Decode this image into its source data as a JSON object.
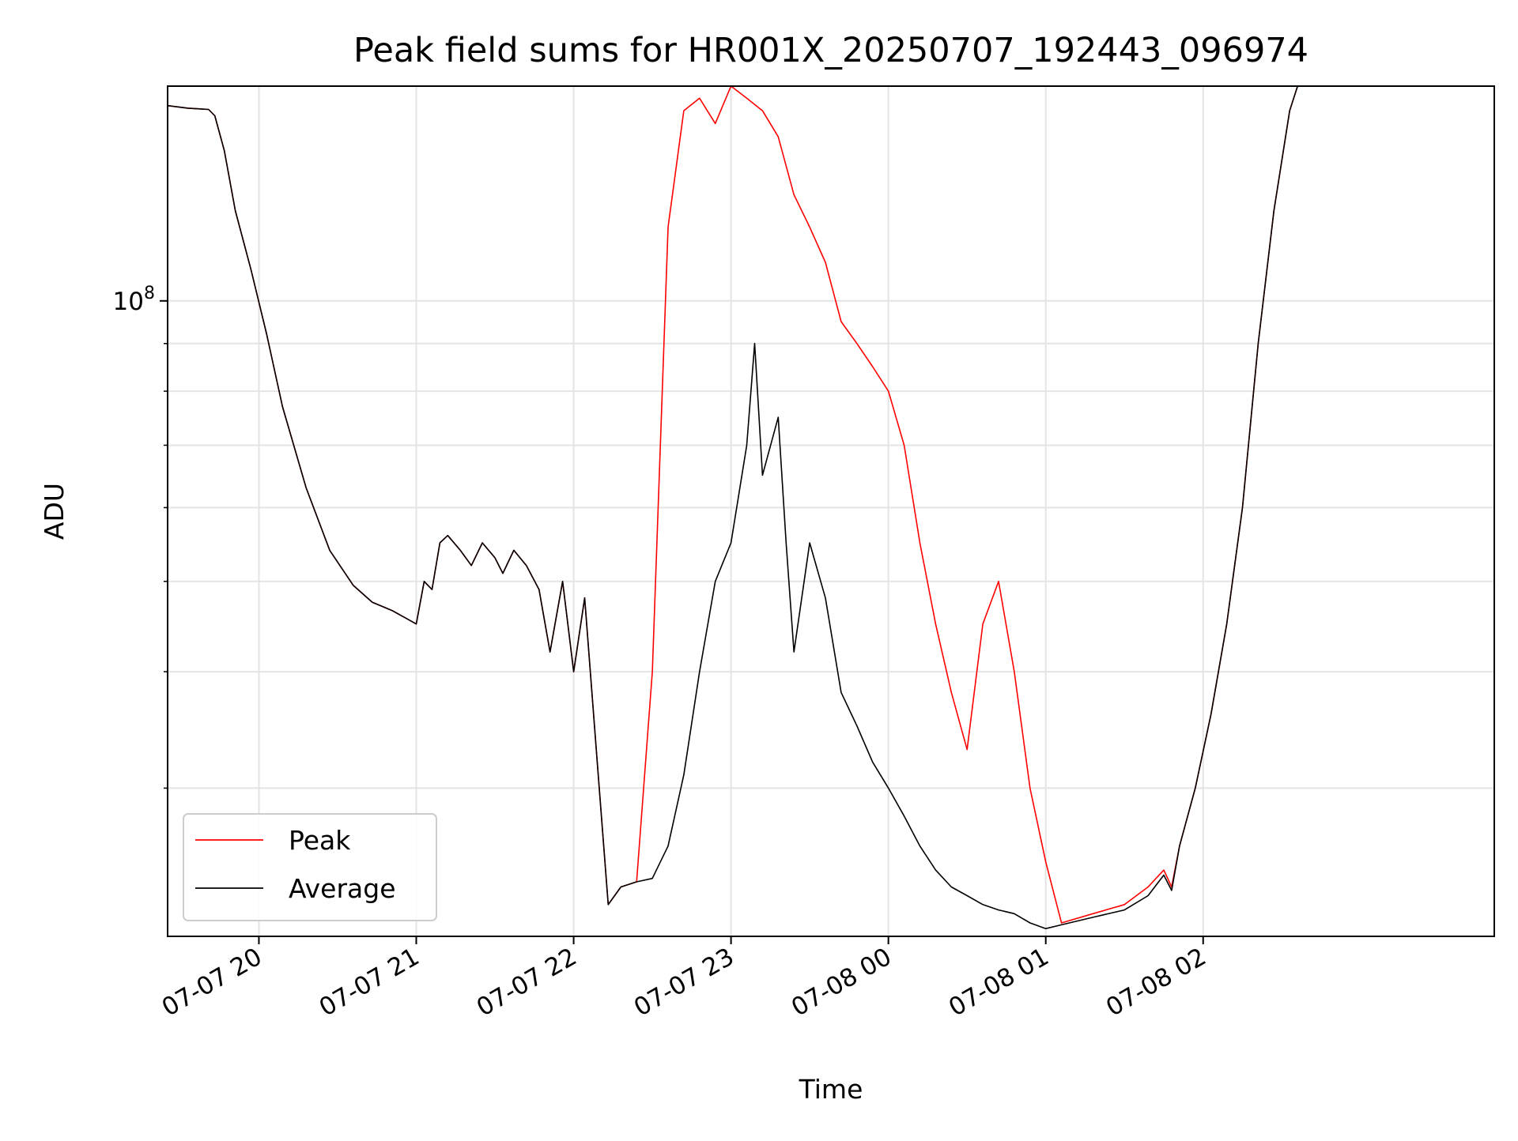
{
  "chart_data": {
    "type": "line",
    "title": "Peak field sums for HR001X_20250707_192443_096974",
    "xlabel": "Time",
    "ylabel": "ADU",
    "y_scale": "log",
    "ylim": [
      20800000,
      170000000
    ],
    "x_unit": "hours since 07-07 00:00",
    "xlim": [
      19.42,
      27.85
    ],
    "x_ticks": [
      {
        "value": 20,
        "label": "07-07 20"
      },
      {
        "value": 21,
        "label": "07-07 21"
      },
      {
        "value": 22,
        "label": "07-07 22"
      },
      {
        "value": 23,
        "label": "07-07 23"
      },
      {
        "value": 24,
        "label": "07-08 00"
      },
      {
        "value": 25,
        "label": "07-08 01"
      },
      {
        "value": 26,
        "label": "07-08 02"
      }
    ],
    "y_ticks": [
      {
        "value": 100000000,
        "label": "10",
        "exponent": "8"
      }
    ],
    "grid": true,
    "legend_placement": "lower-left",
    "series": [
      {
        "name": "Peak",
        "color": "#ff0000",
        "points": [
          [
            19.42,
            162000000
          ],
          [
            19.55,
            161000000
          ],
          [
            19.68,
            160500000
          ],
          [
            19.72,
            158000000
          ],
          [
            19.78,
            145000000
          ],
          [
            19.85,
            125000000
          ],
          [
            19.95,
            108000000
          ],
          [
            20.05,
            92000000
          ],
          [
            20.15,
            77000000
          ],
          [
            20.3,
            63000000
          ],
          [
            20.45,
            54000000
          ],
          [
            20.6,
            49500000
          ],
          [
            20.72,
            47500000
          ],
          [
            20.85,
            46500000
          ],
          [
            20.95,
            45500000
          ],
          [
            21.0,
            45000000
          ],
          [
            21.05,
            50000000
          ],
          [
            21.1,
            49000000
          ],
          [
            21.15,
            55000000
          ],
          [
            21.2,
            56000000
          ],
          [
            21.28,
            54000000
          ],
          [
            21.35,
            52000000
          ],
          [
            21.42,
            55000000
          ],
          [
            21.5,
            53000000
          ],
          [
            21.55,
            51000000
          ],
          [
            21.62,
            54000000
          ],
          [
            21.7,
            52000000
          ],
          [
            21.78,
            49000000
          ],
          [
            21.85,
            42000000
          ],
          [
            21.93,
            50000000
          ],
          [
            22.0,
            40000000
          ],
          [
            22.07,
            48000000
          ],
          [
            22.15,
            32000000
          ],
          [
            22.22,
            22500000
          ],
          [
            22.3,
            23500000
          ],
          [
            22.4,
            23800000
          ],
          [
            22.5,
            40000000
          ],
          [
            22.6,
            120000000
          ],
          [
            22.7,
            160000000
          ],
          [
            22.8,
            165000000
          ],
          [
            22.9,
            155000000
          ],
          [
            23.0,
            170000000
          ],
          [
            23.1,
            165000000
          ],
          [
            23.2,
            160000000
          ],
          [
            23.3,
            150000000
          ],
          [
            23.4,
            130000000
          ],
          [
            23.5,
            120000000
          ],
          [
            23.6,
            110000000
          ],
          [
            23.7,
            95000000
          ],
          [
            23.8,
            90000000
          ],
          [
            23.9,
            85000000
          ],
          [
            24.0,
            80000000
          ],
          [
            24.1,
            70000000
          ],
          [
            24.2,
            55000000
          ],
          [
            24.3,
            45000000
          ],
          [
            24.4,
            38000000
          ],
          [
            24.5,
            33000000
          ],
          [
            24.6,
            45000000
          ],
          [
            24.7,
            50000000
          ],
          [
            24.8,
            40000000
          ],
          [
            24.9,
            30000000
          ],
          [
            25.0,
            25000000
          ],
          [
            25.1,
            21500000
          ],
          [
            25.3,
            22000000
          ],
          [
            25.5,
            22500000
          ],
          [
            25.65,
            23500000
          ],
          [
            25.75,
            24500000
          ],
          [
            25.8,
            23500000
          ],
          [
            25.85,
            26000000
          ],
          [
            25.95,
            30000000
          ],
          [
            26.05,
            36000000
          ],
          [
            26.15,
            45000000
          ],
          [
            26.25,
            60000000
          ],
          [
            26.35,
            90000000
          ],
          [
            26.45,
            125000000
          ],
          [
            26.55,
            160000000
          ],
          [
            26.6,
            170000000
          ]
        ]
      },
      {
        "name": "Average",
        "color": "#000000",
        "points": [
          [
            19.42,
            162000000
          ],
          [
            19.55,
            161000000
          ],
          [
            19.68,
            160500000
          ],
          [
            19.72,
            158000000
          ],
          [
            19.78,
            145000000
          ],
          [
            19.85,
            125000000
          ],
          [
            19.95,
            108000000
          ],
          [
            20.05,
            92000000
          ],
          [
            20.15,
            77000000
          ],
          [
            20.3,
            63000000
          ],
          [
            20.45,
            54000000
          ],
          [
            20.6,
            49500000
          ],
          [
            20.72,
            47500000
          ],
          [
            20.85,
            46500000
          ],
          [
            20.95,
            45500000
          ],
          [
            21.0,
            45000000
          ],
          [
            21.05,
            50000000
          ],
          [
            21.1,
            49000000
          ],
          [
            21.15,
            55000000
          ],
          [
            21.2,
            56000000
          ],
          [
            21.28,
            54000000
          ],
          [
            21.35,
            52000000
          ],
          [
            21.42,
            55000000
          ],
          [
            21.5,
            53000000
          ],
          [
            21.55,
            51000000
          ],
          [
            21.62,
            54000000
          ],
          [
            21.7,
            52000000
          ],
          [
            21.78,
            49000000
          ],
          [
            21.85,
            42000000
          ],
          [
            21.93,
            50000000
          ],
          [
            22.0,
            40000000
          ],
          [
            22.07,
            48000000
          ],
          [
            22.15,
            32000000
          ],
          [
            22.22,
            22500000
          ],
          [
            22.3,
            23500000
          ],
          [
            22.4,
            23800000
          ],
          [
            22.5,
            24000000
          ],
          [
            22.6,
            26000000
          ],
          [
            22.7,
            31000000
          ],
          [
            22.8,
            40000000
          ],
          [
            22.9,
            50000000
          ],
          [
            23.0,
            55000000
          ],
          [
            23.1,
            70000000
          ],
          [
            23.15,
            90000000
          ],
          [
            23.2,
            65000000
          ],
          [
            23.3,
            75000000
          ],
          [
            23.35,
            55000000
          ],
          [
            23.4,
            42000000
          ],
          [
            23.5,
            55000000
          ],
          [
            23.6,
            48000000
          ],
          [
            23.7,
            38000000
          ],
          [
            23.8,
            35000000
          ],
          [
            23.9,
            32000000
          ],
          [
            24.0,
            30000000
          ],
          [
            24.1,
            28000000
          ],
          [
            24.2,
            26000000
          ],
          [
            24.3,
            24500000
          ],
          [
            24.4,
            23500000
          ],
          [
            24.5,
            23000000
          ],
          [
            24.6,
            22500000
          ],
          [
            24.7,
            22200000
          ],
          [
            24.8,
            22000000
          ],
          [
            24.9,
            21500000
          ],
          [
            25.0,
            21200000
          ],
          [
            25.1,
            21400000
          ],
          [
            25.3,
            21800000
          ],
          [
            25.5,
            22200000
          ],
          [
            25.65,
            23000000
          ],
          [
            25.75,
            24200000
          ],
          [
            25.8,
            23300000
          ],
          [
            25.85,
            26000000
          ],
          [
            25.95,
            30000000
          ],
          [
            26.05,
            36000000
          ],
          [
            26.15,
            45000000
          ],
          [
            26.25,
            60000000
          ],
          [
            26.35,
            90000000
          ],
          [
            26.45,
            125000000
          ],
          [
            26.55,
            160000000
          ],
          [
            26.6,
            170000000
          ]
        ]
      }
    ]
  }
}
